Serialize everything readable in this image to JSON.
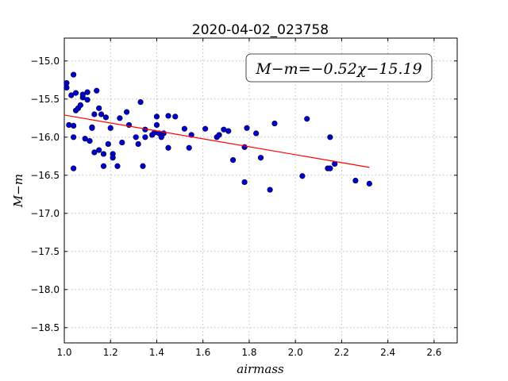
{
  "chart_data": {
    "type": "scatter",
    "title": "2020-04-02_023758",
    "xlabel": "airmass",
    "ylabel": "M−m",
    "xlim": [
      1.0,
      2.7
    ],
    "ylim": [
      -18.7,
      -14.7
    ],
    "y_inverted": true,
    "grid": true,
    "xticks": [
      1.0,
      1.2,
      1.4,
      1.6,
      1.8,
      2.0,
      2.2,
      2.4,
      2.6
    ],
    "xtick_labels": [
      "1.0",
      "1.2",
      "1.4",
      "1.6",
      "1.8",
      "2.0",
      "2.2",
      "2.4",
      "2.6"
    ],
    "yticks": [
      -15.0,
      -15.5,
      -16.0,
      -16.5,
      -17.0,
      -17.5,
      -18.0,
      -18.5
    ],
    "ytick_labels": [
      "−15.0",
      "−15.5",
      "−16.0",
      "−16.5",
      "−17.0",
      "−17.5",
      "−18.0",
      "−18.5"
    ],
    "annotation": "M−m=−0.52χ−15.19",
    "annotation_placement": "top-right",
    "series": [
      {
        "marker_color": "#0000cc",
        "points": [
          [
            1.01,
            -15.29
          ],
          [
            1.01,
            -15.35
          ],
          [
            1.02,
            -15.84
          ],
          [
            1.03,
            -15.45
          ],
          [
            1.04,
            -16.0
          ],
          [
            1.04,
            -16.41
          ],
          [
            1.04,
            -15.18
          ],
          [
            1.04,
            -15.85
          ],
          [
            1.05,
            -15.65
          ],
          [
            1.05,
            -15.42
          ],
          [
            1.06,
            -15.62
          ],
          [
            1.07,
            -15.58
          ],
          [
            1.08,
            -15.48
          ],
          [
            1.08,
            -15.44
          ],
          [
            1.09,
            -16.02
          ],
          [
            1.1,
            -15.51
          ],
          [
            1.1,
            -15.41
          ],
          [
            1.11,
            -16.05
          ],
          [
            1.12,
            -15.87
          ],
          [
            1.12,
            -15.88
          ],
          [
            1.13,
            -15.7
          ],
          [
            1.13,
            -16.2
          ],
          [
            1.14,
            -15.39
          ],
          [
            1.15,
            -16.17
          ],
          [
            1.15,
            -15.62
          ],
          [
            1.16,
            -15.7
          ],
          [
            1.17,
            -16.22
          ],
          [
            1.17,
            -16.38
          ],
          [
            1.18,
            -15.74
          ],
          [
            1.19,
            -16.09
          ],
          [
            1.2,
            -15.88
          ],
          [
            1.21,
            -16.22
          ],
          [
            1.21,
            -16.27
          ],
          [
            1.23,
            -16.38
          ],
          [
            1.24,
            -15.75
          ],
          [
            1.25,
            -16.07
          ],
          [
            1.27,
            -15.67
          ],
          [
            1.28,
            -15.84
          ],
          [
            1.31,
            -16.0
          ],
          [
            1.32,
            -16.09
          ],
          [
            1.33,
            -15.54
          ],
          [
            1.34,
            -16.38
          ],
          [
            1.35,
            -16.0
          ],
          [
            1.35,
            -15.9
          ],
          [
            1.38,
            -15.97
          ],
          [
            1.39,
            -15.94
          ],
          [
            1.4,
            -15.84
          ],
          [
            1.4,
            -15.73
          ],
          [
            1.41,
            -15.95
          ],
          [
            1.42,
            -16.0
          ],
          [
            1.43,
            -15.95
          ],
          [
            1.45,
            -15.72
          ],
          [
            1.45,
            -16.14
          ],
          [
            1.48,
            -15.73
          ],
          [
            1.52,
            -15.89
          ],
          [
            1.54,
            -16.14
          ],
          [
            1.55,
            -15.97
          ],
          [
            1.61,
            -15.89
          ],
          [
            1.66,
            -16.0
          ],
          [
            1.67,
            -15.97
          ],
          [
            1.69,
            -15.9
          ],
          [
            1.71,
            -15.92
          ],
          [
            1.73,
            -16.3
          ],
          [
            1.78,
            -16.59
          ],
          [
            1.78,
            -16.13
          ],
          [
            1.79,
            -15.88
          ],
          [
            1.83,
            -15.95
          ],
          [
            1.85,
            -16.27
          ],
          [
            1.89,
            -16.69
          ],
          [
            1.91,
            -15.82
          ],
          [
            2.03,
            -16.51
          ],
          [
            2.05,
            -15.76
          ],
          [
            2.14,
            -16.41
          ],
          [
            2.15,
            -16.0
          ],
          [
            2.15,
            -16.41
          ],
          [
            2.17,
            -16.35
          ],
          [
            2.26,
            -16.57
          ],
          [
            2.32,
            -16.61
          ]
        ]
      }
    ],
    "fit_line": {
      "color": "#ff0000",
      "slope": -0.52,
      "intercept": -15.19,
      "x_range": [
        1.0,
        2.32
      ]
    }
  }
}
